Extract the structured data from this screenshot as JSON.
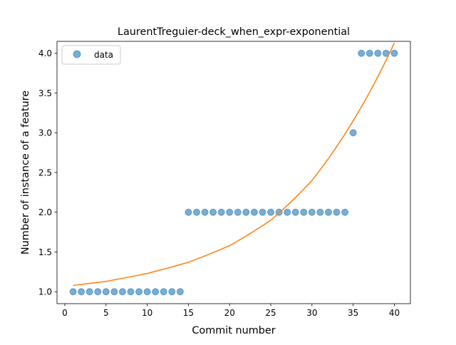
{
  "chart_data": {
    "type": "scatter",
    "title": "LaurentTreguier-deck_when_expr-exponential",
    "xlabel": "Commit number",
    "ylabel": "Number of instance of a feature",
    "xlim": [
      -0.95,
      41.95
    ],
    "ylim": [
      0.85,
      4.15
    ],
    "x_ticks": [
      0,
      5,
      10,
      15,
      20,
      25,
      30,
      35,
      40
    ],
    "y_ticks": [
      1.0,
      1.5,
      2.0,
      2.5,
      3.0,
      3.5,
      4.0
    ],
    "x_tick_labels": [
      "0",
      "5",
      "10",
      "15",
      "20",
      "25",
      "30",
      "35",
      "40"
    ],
    "y_tick_labels": [
      "1.0",
      "1.5",
      "2.0",
      "2.5",
      "3.0",
      "3.5",
      "4.0"
    ],
    "grid": false,
    "legend": {
      "position": "upper-left",
      "entries": [
        "data"
      ]
    },
    "series": [
      {
        "name": "data",
        "kind": "scatter",
        "color": "#1f77b4",
        "x": [
          1,
          2,
          3,
          4,
          5,
          6,
          7,
          8,
          9,
          10,
          11,
          12,
          13,
          14,
          15,
          16,
          17,
          18,
          19,
          20,
          21,
          22,
          23,
          24,
          25,
          26,
          27,
          28,
          29,
          30,
          31,
          32,
          33,
          34,
          35,
          36,
          37,
          38,
          39,
          40
        ],
        "y": [
          1,
          1,
          1,
          1,
          1,
          1,
          1,
          1,
          1,
          1,
          1,
          1,
          1,
          1,
          2,
          2,
          2,
          2,
          2,
          2,
          2,
          2,
          2,
          2,
          2,
          2,
          2,
          2,
          2,
          2,
          2,
          2,
          2,
          2,
          3,
          4,
          4,
          4,
          4,
          4
        ]
      },
      {
        "kind": "line",
        "color": "#ff7f0e",
        "x": [
          1,
          5,
          10,
          15,
          20,
          25,
          30,
          35,
          40
        ],
        "y": [
          1.08,
          1.13,
          1.23,
          1.37,
          1.58,
          1.9,
          2.4,
          3.15,
          4.13
        ]
      }
    ]
  }
}
